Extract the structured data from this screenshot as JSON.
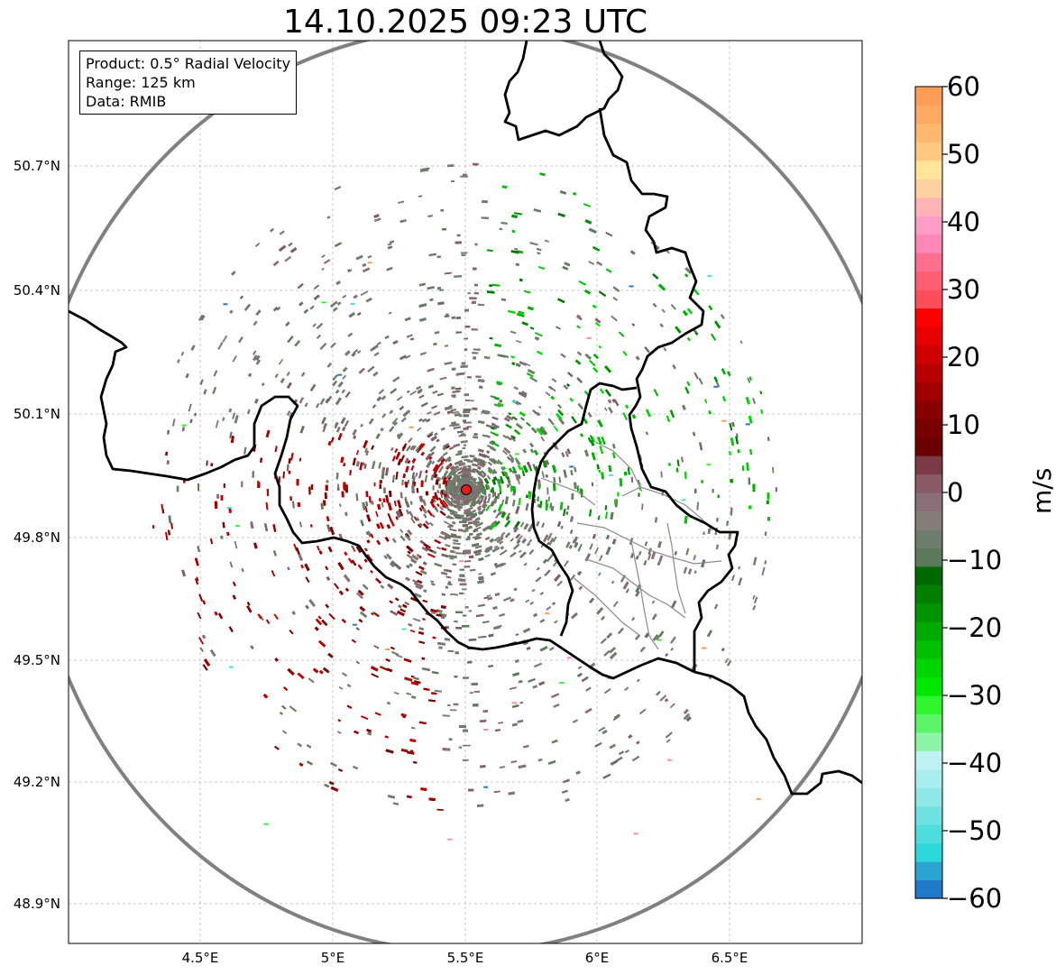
{
  "title": "14.10.2025 09:23 UTC",
  "info_box": {
    "product": "Product: 0.5° Radial Velocity",
    "range": "Range: 125 km",
    "data": "Data: RMIB"
  },
  "axes": {
    "x_ticks": [
      "4.5°E",
      "5°E",
      "5.5°E",
      "6°E",
      "6.5°E"
    ],
    "y_ticks": [
      "50.7°N",
      "50.4°N",
      "50.1°N",
      "49.8°N",
      "49.5°N",
      "49.2°N",
      "48.9°N"
    ]
  },
  "radar": {
    "site_lon": 5.505,
    "site_lat": 49.914,
    "range_km": 125,
    "marker_color": "#e41a1c"
  },
  "colorbar": {
    "label": "m/s",
    "min": -60,
    "max": 60,
    "ticks": [
      "60",
      "50",
      "40",
      "30",
      "20",
      "10",
      "0",
      "−10",
      "−20",
      "−30",
      "−40",
      "−50",
      "−60"
    ],
    "tick_values": [
      60,
      50,
      40,
      30,
      20,
      10,
      0,
      -10,
      -20,
      -30,
      -40,
      -50,
      -60
    ],
    "colors": [
      "#1f78c8",
      "#2aa4d0",
      "#2ed8d8",
      "#4fdcdc",
      "#70e2e2",
      "#8ee8e8",
      "#a8eeee",
      "#bff2f2",
      "#8ef5a8",
      "#5cf56a",
      "#2ef52e",
      "#00e800",
      "#00d400",
      "#00c000",
      "#00aa00",
      "#009400",
      "#007f00",
      "#006a00",
      "#5a7a5a",
      "#6e7e6e",
      "#877d78",
      "#8a6e78",
      "#8a5a66",
      "#7a3a46",
      "#6a0000",
      "#7a0000",
      "#8a0000",
      "#a00000",
      "#b80000",
      "#d00000",
      "#e80000",
      "#ff0000",
      "#ff4d5a",
      "#ff5f70",
      "#ff7090",
      "#ff86b8",
      "#ff9cc8",
      "#ffb4b4",
      "#ffd0a0",
      "#ffe59a",
      "#ffc880",
      "#ffb870",
      "#ffa862",
      "#ff9c55"
    ]
  }
}
